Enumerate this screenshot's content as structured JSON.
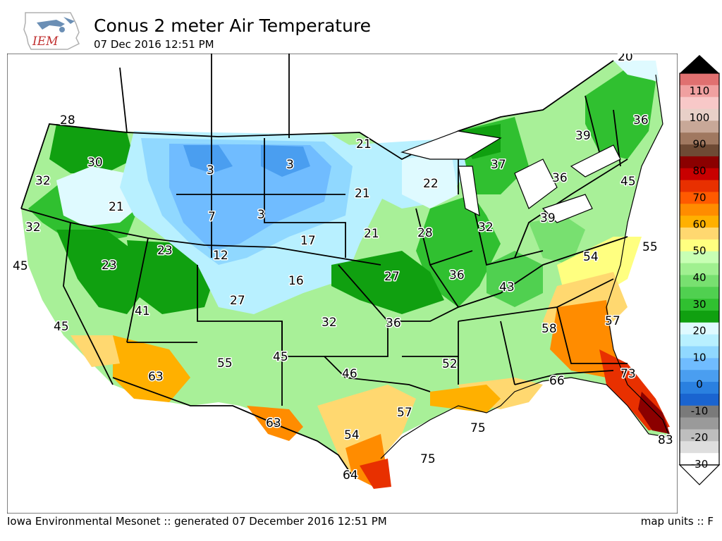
{
  "header": {
    "logo_text": "IEM",
    "title": "Conus 2 meter Air Temperature",
    "timestamp": "07 Dec 2016 12:51 PM"
  },
  "footer": {
    "credit": "Iowa Environmental Mesonet :: generated 07 December 2016 12:51 PM",
    "units": "map units :: F"
  },
  "colorbar": {
    "ticks": [
      "110",
      "100",
      "90",
      "80",
      "70",
      "60",
      "50",
      "40",
      "30",
      "20",
      "10",
      "0",
      "-10",
      "-20",
      "-30"
    ],
    "bands": [
      "#e07070",
      "#f0a0a0",
      "#f8c8c8",
      "#e8d0c8",
      "#c8a898",
      "#a07860",
      "#6e4a34",
      "#8b0000",
      "#c80000",
      "#e83000",
      "#ff5a00",
      "#ff8c00",
      "#ffb000",
      "#ffd870",
      "#ffff80",
      "#c8ffb4",
      "#a0f090",
      "#78e070",
      "#50d050",
      "#30c030",
      "#10a010",
      "#dffaff",
      "#b8f0ff",
      "#90d8ff",
      "#70bcff",
      "#4a9ef0",
      "#2a80e0",
      "#1a64d0",
      "#7a7a7a",
      "#9a9a9a",
      "#bebebe",
      "#dedede",
      "#ffffff"
    ]
  },
  "map": {
    "labels": [
      {
        "id": "t28",
        "value": "28"
      },
      {
        "id": "t30",
        "value": "30"
      },
      {
        "id": "t32a",
        "value": "32"
      },
      {
        "id": "t21a",
        "value": "21"
      },
      {
        "id": "t32b",
        "value": "32"
      },
      {
        "id": "t45a",
        "value": "45"
      },
      {
        "id": "t23a",
        "value": "23"
      },
      {
        "id": "t23b",
        "value": "23"
      },
      {
        "id": "t45b",
        "value": "45"
      },
      {
        "id": "t41",
        "value": "41"
      },
      {
        "id": "t63a",
        "value": "63"
      },
      {
        "id": "t3a",
        "value": "3"
      },
      {
        "id": "t7",
        "value": "7"
      },
      {
        "id": "t3b",
        "value": "3"
      },
      {
        "id": "t3c",
        "value": "3"
      },
      {
        "id": "t12",
        "value": "12"
      },
      {
        "id": "t27a",
        "value": "27"
      },
      {
        "id": "t55a",
        "value": "55"
      },
      {
        "id": "t17",
        "value": "17"
      },
      {
        "id": "t16",
        "value": "16"
      },
      {
        "id": "t21b",
        "value": "21"
      },
      {
        "id": "t21c",
        "value": "21"
      },
      {
        "id": "t21d",
        "value": "21"
      },
      {
        "id": "t22",
        "value": "22"
      },
      {
        "id": "t45c",
        "value": "45"
      },
      {
        "id": "t32c",
        "value": "32"
      },
      {
        "id": "t27b",
        "value": "27"
      },
      {
        "id": "t28b",
        "value": "28"
      },
      {
        "id": "t36a",
        "value": "36"
      },
      {
        "id": "t32d",
        "value": "32"
      },
      {
        "id": "t37",
        "value": "37"
      },
      {
        "id": "t36b",
        "value": "36"
      },
      {
        "id": "t39a",
        "value": "39"
      },
      {
        "id": "t39b",
        "value": "39"
      },
      {
        "id": "t36c",
        "value": "36"
      },
      {
        "id": "t45d",
        "value": "45"
      },
      {
        "id": "t20",
        "value": "20"
      },
      {
        "id": "t46",
        "value": "46"
      },
      {
        "id": "t36d",
        "value": "36"
      },
      {
        "id": "t43",
        "value": "43"
      },
      {
        "id": "t52",
        "value": "52"
      },
      {
        "id": "t58",
        "value": "58"
      },
      {
        "id": "t54a",
        "value": "54"
      },
      {
        "id": "t55b",
        "value": "55"
      },
      {
        "id": "t57a",
        "value": "57"
      },
      {
        "id": "t57b",
        "value": "57"
      },
      {
        "id": "t63b",
        "value": "63"
      },
      {
        "id": "t54b",
        "value": "54"
      },
      {
        "id": "t64",
        "value": "64"
      },
      {
        "id": "t75a",
        "value": "75"
      },
      {
        "id": "t75b",
        "value": "75"
      },
      {
        "id": "t66",
        "value": "66"
      },
      {
        "id": "t73",
        "value": "73"
      },
      {
        "id": "t83",
        "value": "83"
      }
    ]
  }
}
